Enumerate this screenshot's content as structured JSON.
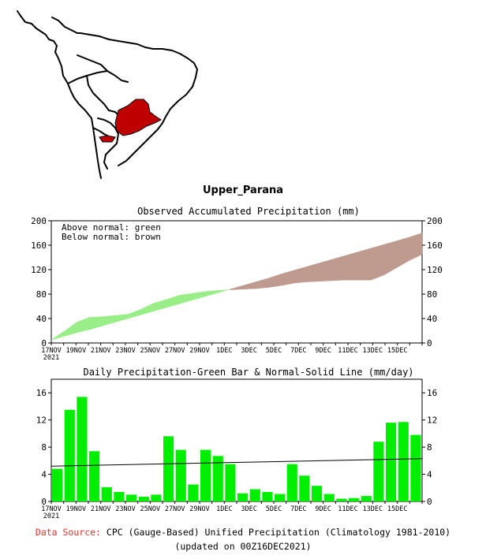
{
  "region": "Upper_Parana",
  "footer": {
    "source_label": "Data Source:",
    "source_text": "CPC (Gauge-Based) Unified Precipitation (Climatology 1981-2010)",
    "updated": "(updated on 00Z16DEC2021)"
  },
  "colors": {
    "above": "#99ee88",
    "below": "#bf9a8f",
    "region_fill": "#bf0000",
    "bar": "#00ee00"
  },
  "chart_data": [
    {
      "type": "area",
      "title": "Observed Accumulated Precipitation (mm)",
      "legend": [
        "Above normal: green",
        "Below normal: brown"
      ],
      "ylim": [
        0,
        200
      ],
      "yticks": [
        0,
        40,
        80,
        120,
        160,
        200
      ],
      "xtick_labels": [
        "17NOV",
        "19NOV",
        "21NOV",
        "23NOV",
        "25NOV",
        "27NOV",
        "29NOV",
        "1DEC",
        "3DEC",
        "5DEC",
        "7DEC",
        "9DEC",
        "11DEC",
        "13DEC",
        "15DEC"
      ],
      "x_year_label": "2021",
      "days": 30,
      "observed": [
        5,
        19,
        34,
        42,
        43,
        45,
        47,
        55,
        65,
        71,
        78,
        81,
        84,
        86,
        87,
        88,
        89,
        91,
        94,
        98,
        100,
        101,
        102,
        103,
        103,
        103,
        111,
        123,
        135,
        145
      ],
      "normal": [
        5,
        11,
        17,
        22,
        28,
        34,
        40,
        46,
        52,
        58,
        64,
        70,
        76,
        82,
        88,
        94,
        100,
        106,
        113,
        119,
        125,
        131,
        137,
        143,
        149,
        155,
        161,
        167,
        173,
        180
      ]
    },
    {
      "type": "bar",
      "title": "Daily Precipitation-Green Bar & Normal-Solid Line (mm/day)",
      "ylim": [
        0,
        18
      ],
      "yticks": [
        0,
        4,
        8,
        12,
        16
      ],
      "xtick_labels": [
        "17NOV",
        "19NOV",
        "21NOV",
        "23NOV",
        "25NOV",
        "27NOV",
        "29NOV",
        "1DEC",
        "3DEC",
        "5DEC",
        "7DEC",
        "9DEC",
        "11DEC",
        "13DEC",
        "15DEC"
      ],
      "x_year_label": "2021",
      "values": [
        4.8,
        13.5,
        15.4,
        7.4,
        2.1,
        1.4,
        1.0,
        0.7,
        1.0,
        9.6,
        7.6,
        2.5,
        7.6,
        6.7,
        5.5,
        1.2,
        1.8,
        1.4,
        1.1,
        5.5,
        3.8,
        2.3,
        1.1,
        0.4,
        0.5,
        0.8,
        8.8,
        11.6,
        11.7,
        9.8
      ],
      "normal_line": [
        5.2,
        6.3
      ]
    }
  ]
}
